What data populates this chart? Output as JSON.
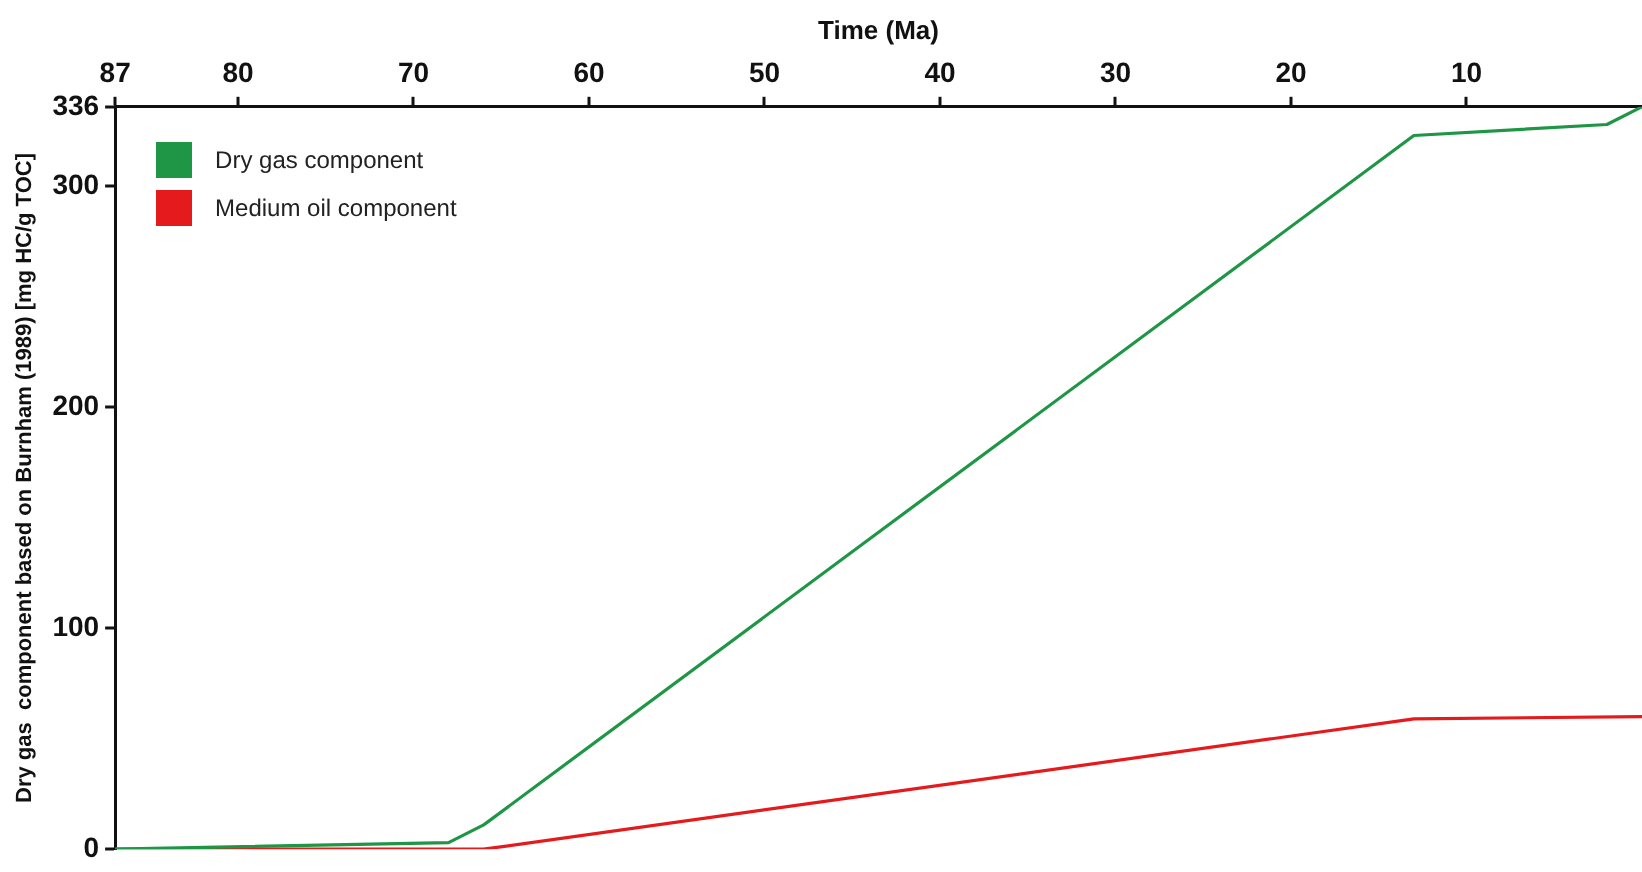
{
  "chart_data": {
    "type": "line",
    "xlabel": "Time (Ma)",
    "ylabel": "Dry gas  component based on Burnham (1989) [mg HC/g TOC]",
    "xlim": [
      87,
      0
    ],
    "xticks": [
      87,
      80,
      70,
      60,
      50,
      40,
      30,
      20,
      10
    ],
    "ylim": [
      0,
      336
    ],
    "yticks": [
      0,
      100,
      200,
      300,
      336
    ],
    "legend": "top left",
    "grid": false,
    "marker": "none",
    "line_style": "solid",
    "series": [
      {
        "name": "Dry gas component",
        "color": "#1e9646",
        "x": [
          87,
          68,
          66,
          13,
          2,
          0
        ],
        "values": [
          0,
          3,
          11,
          323,
          328,
          336
        ]
      },
      {
        "name": "Medium oil component",
        "color": "#e41a1c",
        "x": [
          87,
          66,
          13,
          0
        ],
        "values": [
          0,
          0,
          59,
          60
        ]
      }
    ]
  }
}
